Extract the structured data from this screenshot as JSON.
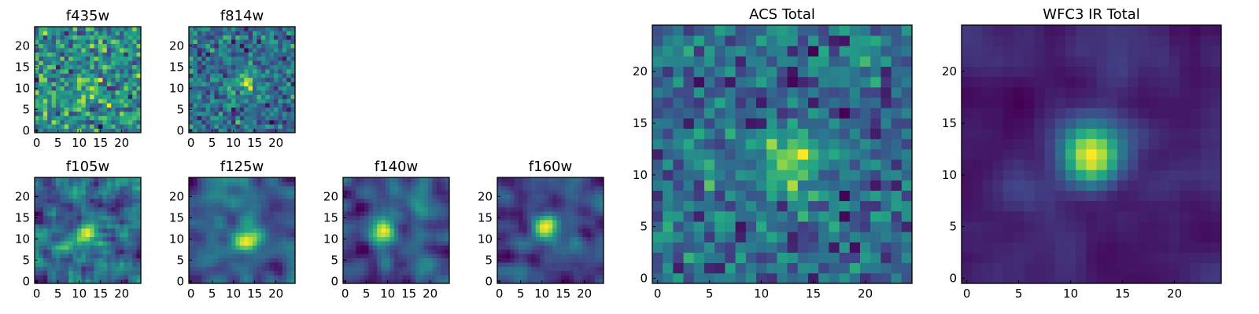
{
  "chart_data": [
    {
      "type": "heatmap",
      "title": "f435w",
      "grid_size": 25,
      "xlim": [
        0,
        24
      ],
      "ylim": [
        0,
        24
      ],
      "xticks": [
        0,
        5,
        10,
        15,
        20
      ],
      "yticks": [
        0,
        5,
        10,
        15,
        20
      ],
      "colormap": "viridis",
      "source_peak": [
        12,
        11
      ],
      "noise_level": 1.0,
      "source_strength": 0.5,
      "smoothness": 0.0,
      "seed": 11
    },
    {
      "type": "heatmap",
      "title": "f814w",
      "grid_size": 25,
      "xlim": [
        0,
        24
      ],
      "ylim": [
        0,
        24
      ],
      "xticks": [
        0,
        5,
        10,
        15,
        20
      ],
      "yticks": [
        0,
        5,
        10,
        15,
        20
      ],
      "colormap": "viridis",
      "source_peak": [
        13,
        11
      ],
      "noise_level": 1.0,
      "source_strength": 1.2,
      "smoothness": 0.0,
      "seed": 23
    },
    {
      "type": "heatmap",
      "title": "f105w",
      "grid_size": 25,
      "xlim": [
        0,
        24
      ],
      "ylim": [
        0,
        24
      ],
      "xticks": [
        0,
        5,
        10,
        15,
        20
      ],
      "yticks": [
        0,
        5,
        10,
        15,
        20
      ],
      "colormap": "viridis",
      "source_peak": [
        12,
        11
      ],
      "noise_level": 1.0,
      "source_strength": 0.6,
      "smoothness": 0.4,
      "seed": 37
    },
    {
      "type": "heatmap",
      "title": "f125w",
      "grid_size": 25,
      "xlim": [
        0,
        24
      ],
      "ylim": [
        0,
        24
      ],
      "xticks": [
        0,
        5,
        10,
        15,
        20
      ],
      "yticks": [
        0,
        5,
        10,
        15,
        20
      ],
      "colormap": "viridis",
      "source_peak": [
        13,
        10
      ],
      "noise_level": 1.0,
      "source_strength": 0.9,
      "smoothness": 0.5,
      "seed": 41
    },
    {
      "type": "heatmap",
      "title": "f140w",
      "grid_size": 25,
      "xlim": [
        0,
        24
      ],
      "ylim": [
        0,
        24
      ],
      "xticks": [
        0,
        5,
        10,
        15,
        20
      ],
      "yticks": [
        0,
        5,
        10,
        15,
        20
      ],
      "colormap": "viridis",
      "source_peak": [
        9,
        12
      ],
      "noise_level": 1.0,
      "source_strength": 1.0,
      "smoothness": 0.5,
      "seed": 53
    },
    {
      "type": "heatmap",
      "title": "f160w",
      "grid_size": 25,
      "xlim": [
        0,
        24
      ],
      "ylim": [
        0,
        24
      ],
      "xticks": [
        0,
        5,
        10,
        15,
        20
      ],
      "yticks": [
        0,
        5,
        10,
        15,
        20
      ],
      "colormap": "viridis",
      "source_peak": [
        11,
        13
      ],
      "noise_level": 1.0,
      "source_strength": 1.4,
      "smoothness": 0.6,
      "seed": 67
    },
    {
      "type": "heatmap",
      "title": "ACS Total",
      "grid_size": 25,
      "xlim": [
        0,
        24
      ],
      "ylim": [
        0,
        24
      ],
      "xticks": [
        0,
        5,
        10,
        15,
        20
      ],
      "yticks": [
        0,
        5,
        10,
        15,
        20
      ],
      "colormap": "viridis",
      "source_peak": [
        13,
        11
      ],
      "noise_level": 1.0,
      "source_strength": 1.6,
      "smoothness": 0.1,
      "seed": 71
    },
    {
      "type": "heatmap",
      "title": "WFC3 IR Total",
      "grid_size": 25,
      "xlim": [
        0,
        24
      ],
      "ylim": [
        0,
        24
      ],
      "xticks": [
        0,
        5,
        10,
        15,
        20
      ],
      "yticks": [
        0,
        5,
        10,
        15,
        20
      ],
      "colormap": "viridis",
      "source_peak": [
        12,
        12
      ],
      "noise_level": 0.8,
      "source_strength": 2.4,
      "smoothness": 0.7,
      "seed": 89
    }
  ],
  "colors": {
    "viridis_stops": [
      "#440154",
      "#414487",
      "#2a788e",
      "#22a884",
      "#7ad151",
      "#fde725"
    ]
  }
}
